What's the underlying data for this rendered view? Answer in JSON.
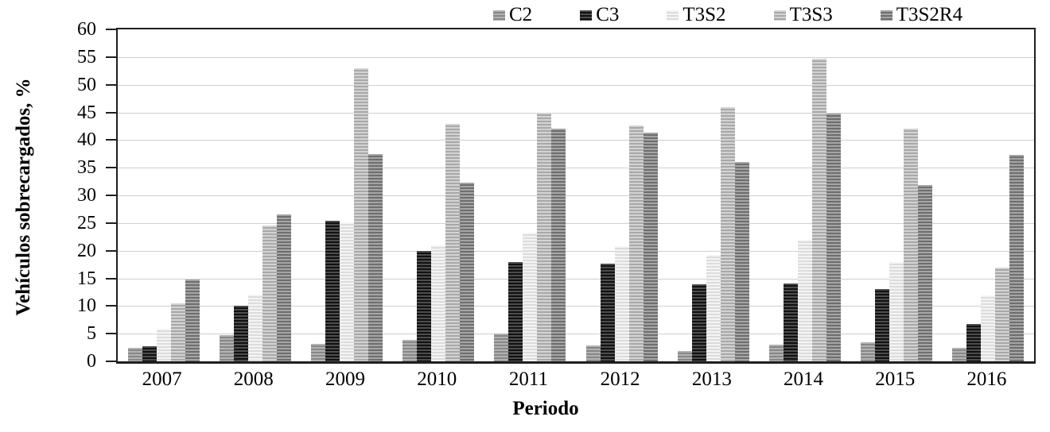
{
  "chart_data": {
    "type": "bar",
    "title": "",
    "xlabel": "Periodo",
    "ylabel": "Vehículos sobrecargados, %",
    "ylim": [
      0,
      60
    ],
    "ytick_step": 5,
    "grid": "horizontal-light-gray",
    "legend_position": "top-right",
    "bar_pattern": "horizontal-stripes",
    "categories": [
      "2007",
      "2008",
      "2009",
      "2010",
      "2011",
      "2012",
      "2013",
      "2014",
      "2015",
      "2016"
    ],
    "series": [
      {
        "name": "C2",
        "color_light": "#b2b2b2",
        "color_dark": "#878787",
        "values": [
          2.5,
          4.8,
          3.2,
          3.9,
          5.0,
          2.9,
          1.8,
          3.0,
          3.4,
          2.4
        ]
      },
      {
        "name": "C3",
        "color_light": "#4d4d4d",
        "color_dark": "#111111",
        "values": [
          2.7,
          10.1,
          25.4,
          20.0,
          18.0,
          17.6,
          13.9,
          14.1,
          13.0,
          6.7
        ]
      },
      {
        "name": "T3S2",
        "color_light": "#f4f4f4",
        "color_dark": "#dcdcdc",
        "values": [
          5.9,
          12.0,
          25.1,
          20.9,
          23.2,
          20.8,
          19.2,
          21.9,
          18.0,
          11.9
        ]
      },
      {
        "name": "T3S3",
        "color_light": "#d3d3d3",
        "color_dark": "#a8a8a8",
        "values": [
          10.5,
          24.5,
          53.0,
          42.9,
          44.9,
          42.6,
          45.9,
          54.7,
          42.1,
          16.9
        ]
      },
      {
        "name": "T3S2R4",
        "color_light": "#a5a5a5",
        "color_dark": "#6e6e6e",
        "values": [
          14.8,
          26.6,
          37.5,
          32.3,
          42.0,
          41.4,
          36.0,
          44.8,
          31.8,
          37.3
        ]
      }
    ],
    "axis_color": "#1f1f1f",
    "gridline_color": "#cfcfcf"
  }
}
